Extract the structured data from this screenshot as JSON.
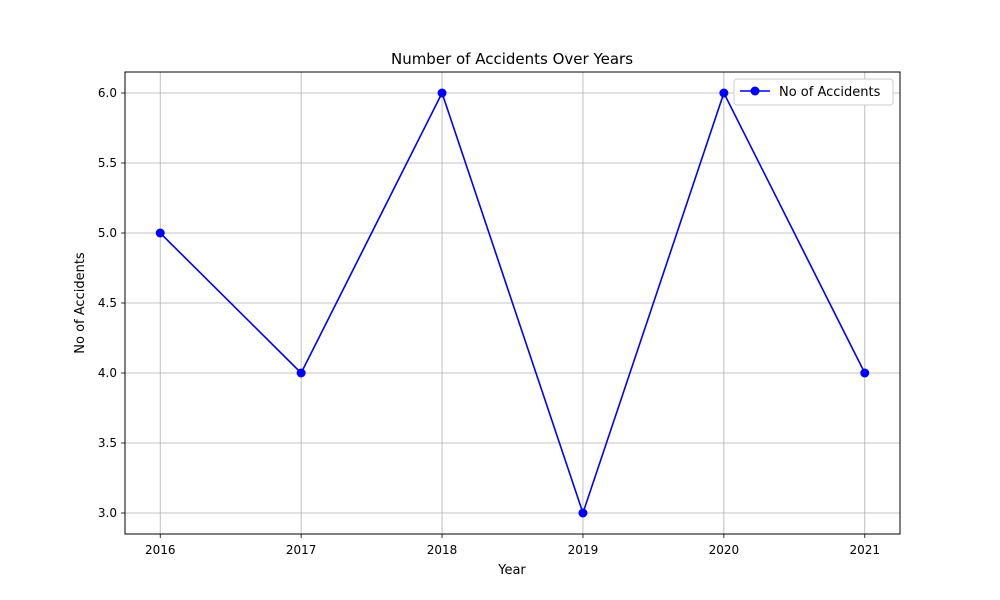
{
  "chart_data": {
    "type": "line",
    "title": "Number of Accidents Over Years",
    "xlabel": "Year",
    "ylabel": "No of Accidents",
    "x": [
      "2016",
      "2017",
      "2018",
      "2019",
      "2020",
      "2021"
    ],
    "series": [
      {
        "name": "No of Accidents",
        "values": [
          5,
          4,
          6,
          3,
          6,
          4
        ],
        "color": "#0000ff",
        "marker": "circle"
      }
    ],
    "ylim": [
      2.85,
      6.15
    ],
    "yticks": [
      "3.0",
      "3.5",
      "4.0",
      "4.5",
      "5.0",
      "5.5",
      "6.0"
    ],
    "grid": true,
    "legend_position": "top-right"
  }
}
